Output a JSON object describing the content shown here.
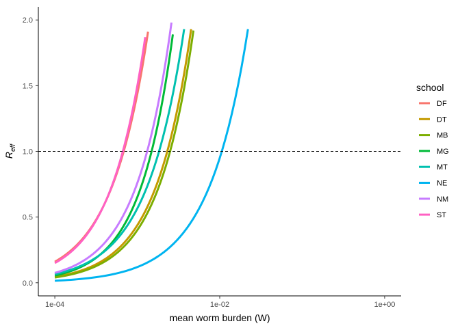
{
  "chart_data": {
    "type": "line",
    "xlabel": "mean worm burden (W)",
    "ylabel_main": "R",
    "ylabel_sub": "eff",
    "x_scale": "log10",
    "xlim": [
      0.0001,
      1
    ],
    "ylim": [
      0,
      2
    ],
    "x_ticks": [
      {
        "value": 0.0001,
        "label": "1e-04"
      },
      {
        "value": 0.01,
        "label": "1e-02"
      },
      {
        "value": 1,
        "label": "1e+00"
      }
    ],
    "y_ticks": [
      {
        "value": 0,
        "label": "0.0"
      },
      {
        "value": 0.5,
        "label": "0.5"
      },
      {
        "value": 1,
        "label": "1.0"
      },
      {
        "value": 1.5,
        "label": "1.5"
      },
      {
        "value": 2,
        "label": "2.0"
      }
    ],
    "reference_line": {
      "y": 1,
      "style": "dashed",
      "color": "#000000"
    },
    "grid": false,
    "legend": {
      "title": "school",
      "placement": "right"
    },
    "series": [
      {
        "name": "DF",
        "color": "#F8766D",
        "x_start": 0.0001,
        "x_end": 0.00135,
        "y_start": 0.16,
        "y_end": 1.91
      },
      {
        "name": "DT",
        "color": "#C49A00",
        "x_start": 0.0001,
        "x_end": 0.0045,
        "y_start": 0.045,
        "y_end": 1.93
      },
      {
        "name": "MB",
        "color": "#7CAE00",
        "x_start": 0.0001,
        "x_end": 0.0048,
        "y_start": 0.04,
        "y_end": 1.92
      },
      {
        "name": "MG",
        "color": "#00BA38",
        "x_start": 0.0001,
        "x_end": 0.0027,
        "y_start": 0.055,
        "y_end": 1.89
      },
      {
        "name": "MT",
        "color": "#00C0AF",
        "x_start": 0.0001,
        "x_end": 0.0037,
        "y_start": 0.065,
        "y_end": 1.93
      },
      {
        "name": "NE",
        "color": "#00B4F0",
        "x_start": 0.0001,
        "x_end": 0.022,
        "y_start": 0.015,
        "y_end": 1.93
      },
      {
        "name": "NM",
        "color": "#C77CFF",
        "x_start": 0.0001,
        "x_end": 0.0026,
        "y_start": 0.075,
        "y_end": 1.98
      },
      {
        "name": "ST",
        "color": "#FF61C3",
        "x_start": 0.0001,
        "x_end": 0.00125,
        "y_start": 0.15,
        "y_end": 1.87
      }
    ]
  }
}
